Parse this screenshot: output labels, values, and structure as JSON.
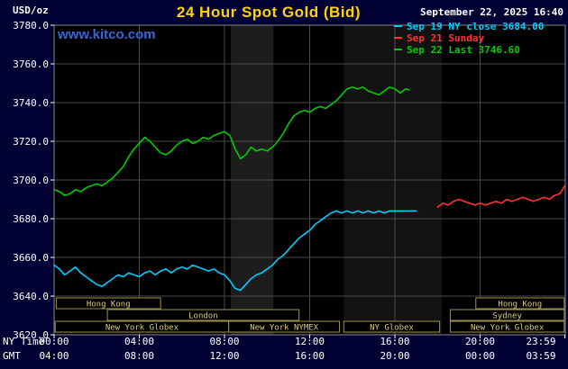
{
  "colors": {
    "background": "#000033",
    "plot_background": "#000000",
    "grid": "#4a4a4a",
    "axis_border": "#888888",
    "axis_text": "#ffffff",
    "title": "#ffd400",
    "watermark": "#3a66d9",
    "session_border": "#a0924e",
    "session_text": "#ddcc7a"
  },
  "header": {
    "units_label": "USD/oz",
    "title": "24 Hour Spot Gold (Bid)",
    "datetime": "September 22, 2025 16:40",
    "watermark": "www.kitco.com",
    "legend": [
      {
        "label": "Sep 19 NY close 3684.00",
        "color": "#00ccff"
      },
      {
        "label": "Sep 21 Sunday",
        "color": "#ff3333"
      },
      {
        "label": "Sep 22 Last 3746.60",
        "color": "#00cc00"
      }
    ]
  },
  "axes": {
    "ny_row_label": "NY Time",
    "gmt_row_label": "GMT"
  },
  "chart_data": {
    "type": "line",
    "title": "24 Hour Spot Gold (Bid)",
    "ylabel": "USD/oz",
    "xlabel": "NY Time / GMT",
    "xlim": [
      0,
      24
    ],
    "ylim": [
      3620,
      3780
    ],
    "grid": true,
    "y_ticks": [
      {
        "value": 3780,
        "label": "3780.0"
      },
      {
        "value": 3760,
        "label": "3760.0"
      },
      {
        "value": 3740,
        "label": "3740.0"
      },
      {
        "value": 3720,
        "label": "3720.0"
      },
      {
        "value": 3700,
        "label": "3700.0"
      },
      {
        "value": 3680,
        "label": "3680.0"
      },
      {
        "value": 3660,
        "label": "3660.0"
      },
      {
        "value": 3640,
        "label": "3640.0"
      },
      {
        "value": 3620,
        "label": "3620.0"
      }
    ],
    "x_ticks": [
      {
        "hour": 0,
        "ny": "00:00",
        "gmt": "04:00"
      },
      {
        "hour": 4,
        "ny": "04:00",
        "gmt": "08:00"
      },
      {
        "hour": 8,
        "ny": "08:00",
        "gmt": "12:00"
      },
      {
        "hour": 12,
        "ny": "12:00",
        "gmt": "16:00"
      },
      {
        "hour": 16,
        "ny": "16:00",
        "gmt": "20:00"
      },
      {
        "hour": 20,
        "ny": "20:00",
        "gmt": "00:00"
      },
      {
        "hour": 23.983,
        "ny": "23:59",
        "gmt": "03:59"
      }
    ],
    "bands": [
      {
        "x0": 8.3,
        "x1": 10.3,
        "color": "#1d1d1d"
      },
      {
        "x0": 13.6,
        "x1": 18.2,
        "color": "#121212"
      }
    ],
    "series": [
      {
        "id": "sep19",
        "name": "Sep 19 NY close",
        "close": 3684.0,
        "color": "#00ccff",
        "x": [
          0,
          0.25,
          0.5,
          0.75,
          1,
          1.25,
          1.5,
          1.75,
          2,
          2.25,
          2.5,
          2.75,
          3,
          3.25,
          3.5,
          3.75,
          4,
          4.25,
          4.5,
          4.75,
          5,
          5.25,
          5.5,
          5.75,
          6,
          6.25,
          6.5,
          6.75,
          7,
          7.25,
          7.5,
          7.75,
          8,
          8.25,
          8.5,
          8.75,
          9,
          9.25,
          9.5,
          9.75,
          10,
          10.25,
          10.5,
          10.75,
          11,
          11.25,
          11.5,
          11.75,
          12,
          12.25,
          12.5,
          12.75,
          13,
          13.25,
          13.5,
          13.75,
          14,
          14.25,
          14.5,
          14.75,
          15,
          15.25,
          15.5,
          15.75,
          16,
          16.25,
          16.5,
          16.75,
          17
        ],
        "y": [
          3656,
          3654,
          3651,
          3653,
          3655,
          3652,
          3650,
          3648,
          3646,
          3645,
          3647,
          3649,
          3651,
          3650,
          3652,
          3651,
          3650,
          3652,
          3653,
          3651,
          3653,
          3654,
          3652,
          3654,
          3655,
          3654,
          3656,
          3655,
          3654,
          3653,
          3654,
          3652,
          3651,
          3648,
          3644,
          3643,
          3646,
          3649,
          3651,
          3652,
          3654,
          3656,
          3659,
          3661,
          3664,
          3667,
          3670,
          3672,
          3674,
          3677,
          3679,
          3681,
          3683,
          3684,
          3683,
          3684,
          3683,
          3684,
          3683,
          3684,
          3683,
          3684,
          3683,
          3684,
          3684,
          3684,
          3684,
          3684,
          3684
        ]
      },
      {
        "id": "sep21",
        "name": "Sep 21 Sunday",
        "color": "#ff3333",
        "x": [
          18,
          18.25,
          18.5,
          18.75,
          19,
          19.25,
          19.5,
          19.75,
          20,
          20.25,
          20.5,
          20.75,
          21,
          21.25,
          21.5,
          21.75,
          22,
          22.25,
          22.5,
          22.75,
          23,
          23.25,
          23.5,
          23.75,
          23.98
        ],
        "y": [
          3686,
          3688,
          3687,
          3689,
          3690,
          3689,
          3688,
          3687,
          3688,
          3687,
          3688,
          3689,
          3688,
          3690,
          3689,
          3690,
          3691,
          3690,
          3689,
          3690,
          3691,
          3690,
          3692,
          3693,
          3697
        ]
      },
      {
        "id": "sep22",
        "name": "Sep 22 Last",
        "last": 3746.6,
        "color": "#00cc00",
        "x": [
          0,
          0.25,
          0.5,
          0.75,
          1,
          1.25,
          1.5,
          1.75,
          2,
          2.25,
          2.5,
          2.75,
          3,
          3.25,
          3.5,
          3.75,
          4,
          4.25,
          4.5,
          4.75,
          5,
          5.25,
          5.5,
          5.75,
          6,
          6.25,
          6.5,
          6.75,
          7,
          7.25,
          7.5,
          7.75,
          8,
          8.25,
          8.5,
          8.75,
          9,
          9.25,
          9.5,
          9.75,
          10,
          10.25,
          10.5,
          10.75,
          11,
          11.25,
          11.5,
          11.75,
          12,
          12.25,
          12.5,
          12.75,
          13,
          13.25,
          13.5,
          13.75,
          14,
          14.25,
          14.5,
          14.75,
          15,
          15.25,
          15.5,
          15.75,
          16,
          16.25,
          16.5,
          16.67
        ],
        "y": [
          3695,
          3694,
          3692,
          3693,
          3695,
          3694,
          3696,
          3697,
          3698,
          3697,
          3699,
          3701,
          3704,
          3707,
          3712,
          3716,
          3719,
          3722,
          3720,
          3717,
          3714,
          3713,
          3715,
          3718,
          3720,
          3721,
          3719,
          3720,
          3722,
          3721,
          3723,
          3724,
          3725,
          3723,
          3716,
          3711,
          3713,
          3717,
          3715,
          3716,
          3715,
          3717,
          3720,
          3724,
          3729,
          3733,
          3735,
          3736,
          3735,
          3737,
          3738,
          3737,
          3739,
          3741,
          3744,
          3747,
          3748,
          3747,
          3748,
          3746,
          3745,
          3744,
          3746,
          3748,
          3747,
          3745,
          3747,
          3746.6
        ]
      }
    ],
    "sessions": [
      {
        "row": 0,
        "x0": 0.1,
        "x1": 5.0,
        "label": "Hong Kong"
      },
      {
        "row": 0,
        "x0": 19.8,
        "x1": 23.95,
        "label": "Hong Kong"
      },
      {
        "row": 1,
        "x0": 2.5,
        "x1": 11.5,
        "label": "London"
      },
      {
        "row": 1,
        "x0": 18.6,
        "x1": 23.95,
        "label": "Sydney"
      },
      {
        "row": 2,
        "x0": 0.05,
        "x1": 8.2,
        "label": "New York Globex"
      },
      {
        "row": 2,
        "x0": 8.2,
        "x1": 13.4,
        "label": "New York NYMEX"
      },
      {
        "row": 2,
        "x0": 13.6,
        "x1": 18.1,
        "label": "NY Globex"
      },
      {
        "row": 2,
        "x0": 18.6,
        "x1": 23.95,
        "label": "New York Globex"
      }
    ]
  }
}
